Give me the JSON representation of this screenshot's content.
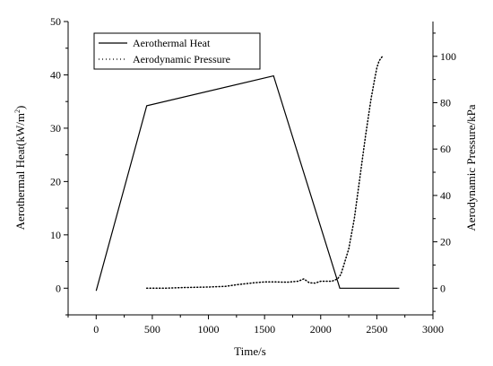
{
  "chart_data": {
    "type": "line",
    "xlabel": "Time/s",
    "ylabel_left": "Aerothermal Heat(kW/m",
    "ylabel_left_sup": "2",
    "ylabel_left_suffix": ")",
    "ylabel_right": "Aerodynamic Pressure/kPa",
    "xlim": [
      -250,
      3000
    ],
    "ylim_left": [
      -5,
      50
    ],
    "ylim_right": [
      -11.5,
      115
    ],
    "x_ticks": [
      0,
      500,
      1000,
      1500,
      2000,
      2500,
      3000
    ],
    "x_tick_labels": [
      "0",
      "500",
      "1000",
      "1500",
      "2000",
      "2500",
      "3000"
    ],
    "y_left_ticks": [
      0,
      10,
      20,
      30,
      40,
      50
    ],
    "y_left_tick_labels": [
      "0",
      "10",
      "20",
      "30",
      "40",
      "50"
    ],
    "y_right_ticks": [
      0,
      20,
      40,
      60,
      80,
      100
    ],
    "y_right_tick_labels": [
      "0",
      "20",
      "40",
      "60",
      "80",
      "100"
    ],
    "legend_position": "top-left",
    "grid": false,
    "series": [
      {
        "name": "Aerothermal Heat",
        "axis": "left",
        "style": "solid",
        "color": "#000000",
        "x": [
          0,
          450,
          1580,
          2170,
          2700
        ],
        "y": [
          -0.5,
          34.2,
          39.8,
          0,
          0
        ]
      },
      {
        "name": "Aerodynamic Pressure",
        "axis": "right",
        "style": "dotted",
        "color": "#000000",
        "x": [
          450,
          600,
          800,
          1000,
          1150,
          1250,
          1400,
          1500,
          1600,
          1700,
          1800,
          1850,
          1900,
          1950,
          2000,
          2050,
          2100,
          2150,
          2180,
          2200,
          2250,
          2300,
          2350,
          2400,
          2450,
          2480,
          2500,
          2520,
          2550
        ],
        "y": [
          0,
          0,
          0.3,
          0.5,
          0.8,
          1.5,
          2.3,
          2.7,
          2.7,
          2.6,
          3,
          4,
          2.3,
          2.2,
          3,
          3,
          3,
          4,
          6,
          9,
          17,
          30,
          48,
          66,
          82,
          90,
          95,
          98,
          100
        ]
      }
    ]
  }
}
